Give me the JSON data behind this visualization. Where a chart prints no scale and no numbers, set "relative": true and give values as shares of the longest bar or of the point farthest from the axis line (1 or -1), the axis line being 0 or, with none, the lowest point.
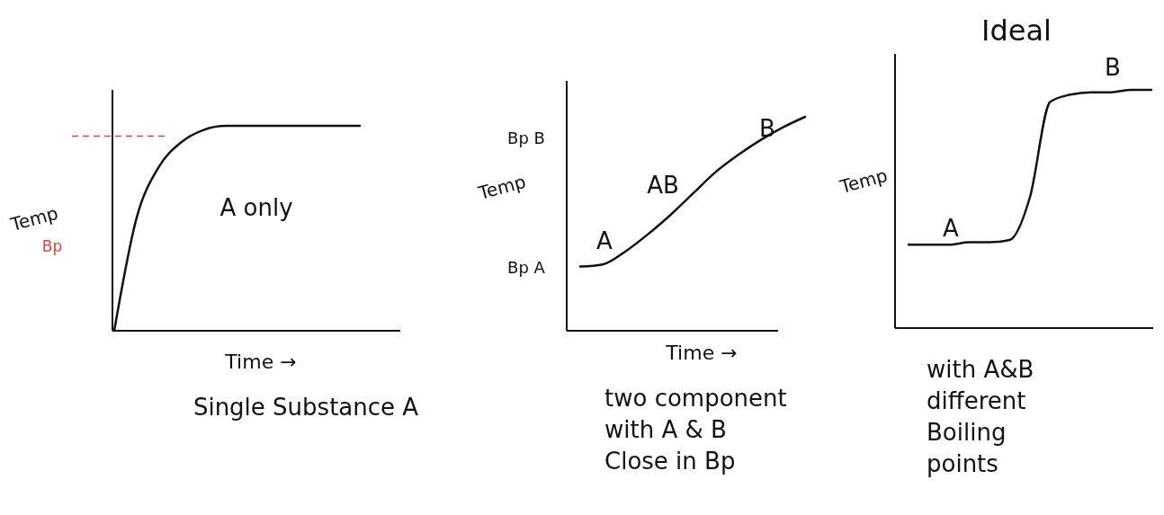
{
  "chart_data": [
    {
      "type": "line",
      "title": "Single Substance A",
      "xlabel": "Time →",
      "ylabel": "Temp",
      "relative": true,
      "categories": [
        null,
        null,
        null,
        null,
        null,
        null,
        null,
        null,
        null,
        null,
        null,
        null
      ],
      "series": [
        {
          "color": "#111111",
          "values": [
            0,
            0.55,
            0.8,
            0.92,
            0.98,
            1,
            1,
            1,
            1,
            1,
            1,
            1
          ]
        }
      ],
      "ref_lines": [
        {
          "axis": "y",
          "value": 0.95,
          "label": "Bp",
          "color": "#e8403a",
          "line_style": "dashed"
        }
      ],
      "annotations": [
        "A only"
      ]
    },
    {
      "type": "line",
      "title": "two component\nwith A & B\nClose in Bp",
      "xlabel": "Time →",
      "ylabel": "Temp",
      "relative": true,
      "categories": [
        null,
        null,
        null,
        null,
        null,
        null,
        null,
        null,
        null,
        null,
        null
      ],
      "series": [
        {
          "color": "#111111",
          "values": [
            0.3,
            0.31,
            0.37,
            0.45,
            0.54,
            0.64,
            0.74,
            0.82,
            0.89,
            0.95,
            1
          ]
        }
      ],
      "annotations": [
        "Bp B",
        "Bp A",
        "A",
        "AB",
        "B"
      ]
    },
    {
      "type": "line",
      "title": "Ideal",
      "ylabel": "Temp",
      "relative": true,
      "categories": [
        null,
        null,
        null,
        null,
        null,
        null,
        null,
        null,
        null,
        null,
        null,
        null,
        null
      ],
      "series": [
        {
          "color": "#111111",
          "values": [
            0.35,
            0.35,
            0.35,
            0.36,
            0.36,
            0.37,
            0.55,
            0.95,
            0.98,
            0.99,
            0.99,
            1,
            1
          ]
        }
      ],
      "annotations": [
        "A",
        "B",
        "with A&B\ndifferent\nBoiling\npoints"
      ]
    }
  ]
}
